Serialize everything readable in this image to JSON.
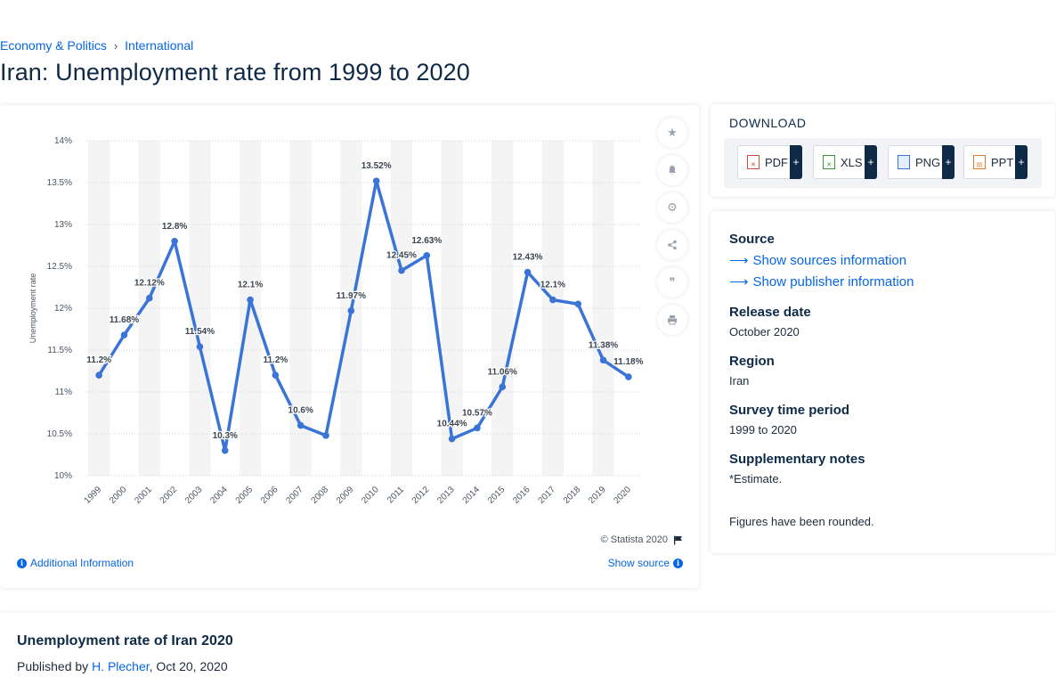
{
  "breadcrumb": {
    "item1": "Economy & Politics",
    "sep": "›",
    "item2": "International"
  },
  "page_title": "Iran: Unemployment rate from 1999 to 2020",
  "chart_data": {
    "type": "line",
    "ylabel": "Unemployment rate",
    "ylim": [
      10,
      14
    ],
    "yticks": [
      "10%",
      "10.5%",
      "11%",
      "11.5%",
      "12%",
      "12.5%",
      "13%",
      "13.5%",
      "14%"
    ],
    "categories": [
      "1999",
      "2000",
      "2001",
      "2002",
      "2003",
      "2004",
      "2005",
      "2006",
      "2007",
      "2008",
      "2009",
      "2010",
      "2011",
      "2012",
      "2013",
      "2014",
      "2015",
      "2016",
      "2017",
      "2018",
      "2019",
      "2020"
    ],
    "values": [
      11.2,
      11.68,
      12.12,
      12.8,
      11.54,
      10.3,
      12.1,
      11.2,
      10.6,
      10.48,
      11.97,
      13.52,
      12.45,
      12.63,
      10.44,
      10.57,
      11.06,
      12.43,
      12.1,
      12.05,
      11.38,
      11.18
    ],
    "labels": [
      "11.2%",
      "11.68%",
      "12.12%",
      "12.8%",
      "11.54%",
      "10.3%",
      "12.1%",
      "11.2%",
      "10.6%",
      "",
      "11.97%",
      "13.52%",
      "12.45%",
      "12.63%",
      "10.44%",
      "10.57%",
      "11.06%",
      "12.43%",
      "12.1%",
      "",
      "11.38%",
      "11.18%"
    ],
    "line_color": "#3a74d6",
    "grid": true
  },
  "chart_footer": {
    "copyright": "© Statista 2020",
    "additional_info": "Additional Information",
    "show_source": "Show source"
  },
  "download": {
    "heading": "DOWNLOAD",
    "pdf": "PDF",
    "xls": "XLS",
    "png": "PNG",
    "ppt": "PPT",
    "plus": "+"
  },
  "meta": {
    "source_label": "Source",
    "show_sources": "Show sources information",
    "show_publisher": "Show publisher information",
    "release_label": "Release date",
    "release_value": "October 2020",
    "region_label": "Region",
    "region_value": "Iran",
    "survey_label": "Survey time period",
    "survey_value": "1999 to 2020",
    "notes_label": "Supplementary notes",
    "notes_value": "*Estimate.",
    "notes_value2": "Figures have been rounded."
  },
  "article": {
    "title": "Unemployment rate of Iran 2020",
    "published_by": "Published by",
    "author": "H. Plecher",
    "date": ", Oct 20, 2020"
  }
}
